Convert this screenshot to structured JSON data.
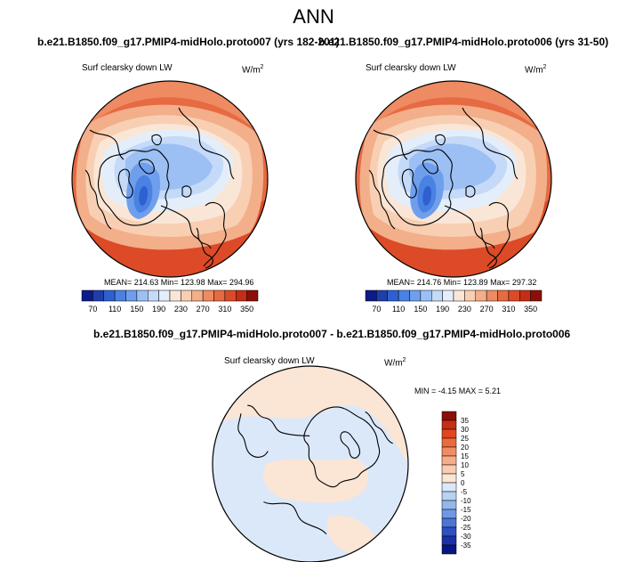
{
  "title": "ANN",
  "panels": [
    {
      "case": "b.e21.B1850.f09_g17.PMIP4-midHolo.proto007 (yrs 182-201)",
      "variable": "Surf clearsky down LW",
      "units_base": "W/m",
      "units_exp": "2",
      "stats": "MEAN= 214.63  Min= 123.98  Max= 294.96"
    },
    {
      "case": "b.e21.B1850.f09_g17.PMIP4-midHolo.proto006 (yrs 31-50)",
      "variable": "Surf clearsky down LW",
      "units_base": "W/m",
      "units_exp": "2",
      "stats": "MEAN= 214.76  Min= 123.89  Max= 297.32"
    }
  ],
  "colorbar_abs": {
    "labels": [
      "70",
      "110",
      "150",
      "190",
      "230",
      "270",
      "310",
      "350"
    ],
    "colors": [
      "#0d1a8a",
      "#1f3ea8",
      "#2f60cf",
      "#4a82e3",
      "#6f9fec",
      "#9cc0f4",
      "#c5daf8",
      "#e4eefb",
      "#fae6d6",
      "#f8cfb3",
      "#f3ae8a",
      "#ee8b62",
      "#e66a42",
      "#dc4a28",
      "#c52d14",
      "#8b0f08"
    ]
  },
  "diff": {
    "title": "b.e21.B1850.f09_g17.PMIP4-midHolo.proto007 - b.e21.B1850.f09_g17.PMIP4-midHolo.proto006",
    "variable": "Surf clearsky down LW",
    "units_base": "W/m",
    "units_exp": "2",
    "minmax": "MIN =  -4.15 MAX =  5.21",
    "colorbar_labels": [
      "35",
      "30",
      "25",
      "20",
      "15",
      "10",
      "5",
      "0",
      "-5",
      "-10",
      "-15",
      "-20",
      "-25",
      "-30",
      "-35"
    ],
    "colorbar_colors": [
      "#8b0f08",
      "#c52d14",
      "#e34421",
      "#ee6a3c",
      "#f28d63",
      "#f6ad8a",
      "#f9ccb0",
      "#fbe5d5",
      "#dbe8f9",
      "#b8d2f4",
      "#94b7ee",
      "#6f97e4",
      "#4e74d6",
      "#2f4fc2",
      "#1a32a5",
      "#0a1680"
    ]
  }
}
